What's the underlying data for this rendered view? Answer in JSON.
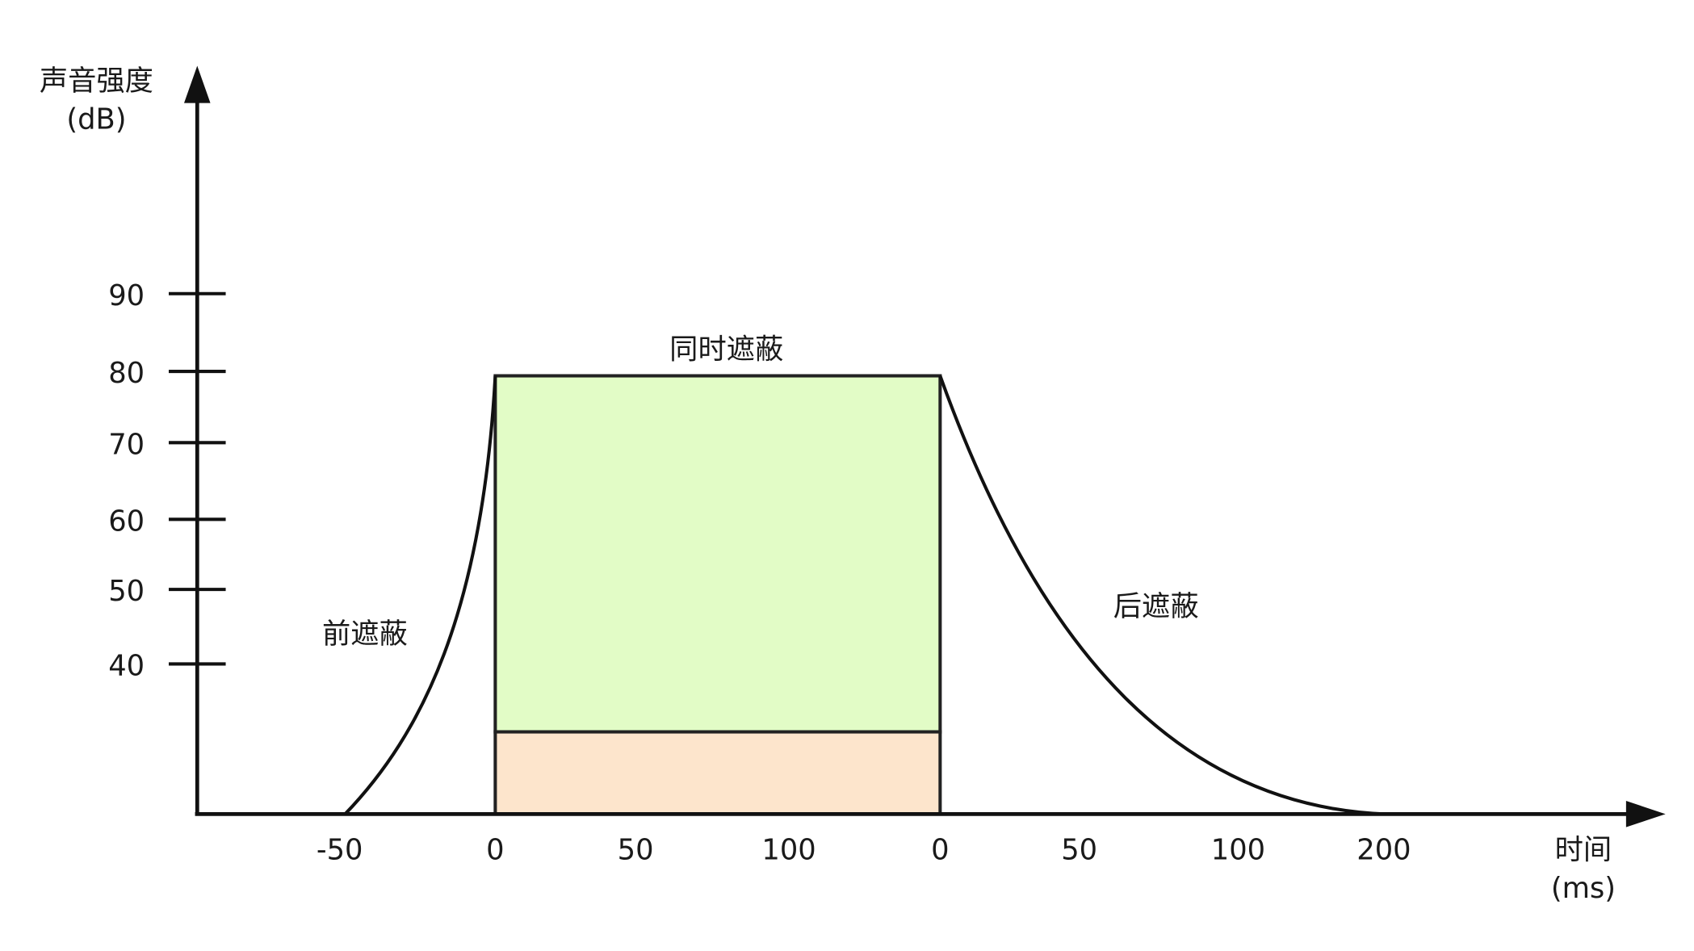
{
  "y_axis": {
    "label": "声音强度",
    "unit": "(dB)",
    "ticks": [
      "90",
      "80",
      "70",
      "60",
      "50",
      "40"
    ]
  },
  "x_axis": {
    "label": "时间",
    "unit": "(ms)",
    "ticks": [
      "-50",
      "0",
      "50",
      "100",
      "0",
      "50",
      "100",
      "200"
    ]
  },
  "regions": {
    "pre": "前遮蔽",
    "simultaneous": "同时遮蔽",
    "post": "后遮蔽"
  }
}
